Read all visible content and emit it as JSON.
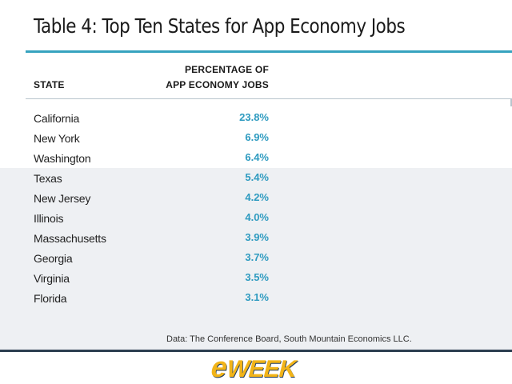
{
  "title": "Table 4: Top Ten States for App Economy Jobs",
  "header": {
    "state": "STATE",
    "pct_line1": "PERCENTAGE OF",
    "pct_line2": "APP ECONOMY JOBS"
  },
  "source": "Data: The Conference Board, South Mountain Economics LLC.",
  "logo": {
    "e": "e",
    "rest": "WEEK"
  },
  "colors": {
    "accent": "#36a3bf",
    "value_text": "#2e9bc0",
    "band": "#eef0f3",
    "logo": "#f2b418",
    "rule_dark": "#2c3e50"
  },
  "chart_data": {
    "type": "table",
    "title": "Table 4: Top Ten States for App Economy Jobs",
    "columns": [
      "STATE",
      "PERCENTAGE OF APP ECONOMY JOBS"
    ],
    "rows": [
      {
        "state": "California",
        "pct": "23.8%"
      },
      {
        "state": "New York",
        "pct": "6.9%"
      },
      {
        "state": "Washington",
        "pct": "6.4%"
      },
      {
        "state": "Texas",
        "pct": "5.4%"
      },
      {
        "state": "New Jersey",
        "pct": "4.2%"
      },
      {
        "state": "Illinois",
        "pct": "4.0%"
      },
      {
        "state": "Massachusetts",
        "pct": "3.9%"
      },
      {
        "state": "Georgia",
        "pct": "3.7%"
      },
      {
        "state": "Virginia",
        "pct": "3.5%"
      },
      {
        "state": "Florida",
        "pct": "3.1%"
      }
    ]
  }
}
